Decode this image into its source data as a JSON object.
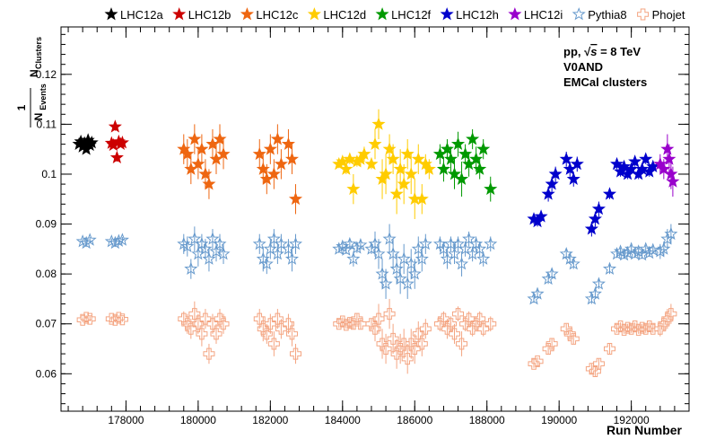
{
  "chart_data": {
    "type": "scatter",
    "title": "",
    "xlabel": "Run Number",
    "ylabel_parts": [
      "1",
      "N",
      "Events",
      "N",
      "Clusters"
    ],
    "xlim": [
      176200,
      193600
    ],
    "ylim": [
      0.0525,
      0.1295
    ],
    "x_ticks": [
      178000,
      180000,
      182000,
      184000,
      186000,
      188000,
      190000,
      192000
    ],
    "x_tick_labels": [
      "178000",
      "180000",
      "182000",
      "184000",
      "186000",
      "188000",
      "190000",
      "192000"
    ],
    "y_ticks": [
      0.06,
      0.07,
      0.08,
      0.09,
      0.1,
      0.11,
      0.12
    ],
    "y_tick_labels": [
      "0.06",
      "0.07",
      "0.08",
      "0.09",
      "0.1",
      "0.11",
      "0.12"
    ],
    "annotations": {
      "system_prefix": "pp, ",
      "sqrt": "√",
      "s": "s",
      "energy": " = 8 TeV",
      "trigger": "V0AND",
      "clusters": "EMCal clusters"
    },
    "legend_placement": "top",
    "series": [
      {
        "name": "LHC12a",
        "color": "#000000",
        "marker": "star-filled",
        "x": [
          176700,
          176750,
          176800,
          176850,
          176900,
          176950,
          177000,
          177050
        ],
        "y": [
          0.106,
          0.1065,
          0.1055,
          0.1062,
          0.105,
          0.1068,
          0.1058,
          0.1063
        ],
        "err": [
          0.0005,
          0.0005,
          0.0005,
          0.0005,
          0.0005,
          0.0005,
          0.0005,
          0.0005
        ]
      },
      {
        "name": "LHC12b",
        "color": "#cc0000",
        "marker": "star-filled",
        "x": [
          177600,
          177650,
          177700,
          177750,
          177800,
          177850,
          177900
        ],
        "y": [
          0.1062,
          0.1058,
          0.1095,
          0.1033,
          0.1065,
          0.106,
          0.1063
        ],
        "err": [
          0.0006,
          0.0006,
          0.0008,
          0.0008,
          0.0006,
          0.0006,
          0.0006
        ]
      },
      {
        "name": "LHC12c",
        "color": "#ee6611",
        "marker": "star-filled",
        "x": [
          179600,
          179700,
          179800,
          179900,
          180000,
          180100,
          180200,
          180300,
          180400,
          180500,
          180600,
          180700,
          181700,
          181800,
          181900,
          182000,
          182100,
          182200,
          182300,
          182500,
          182600,
          182700
        ],
        "y": [
          0.105,
          0.104,
          0.101,
          0.107,
          0.102,
          0.105,
          0.1,
          0.098,
          0.106,
          0.103,
          0.107,
          0.104,
          0.104,
          0.101,
          0.099,
          0.105,
          0.1,
          0.107,
          0.102,
          0.106,
          0.103,
          0.095
        ],
        "err": [
          0.003,
          0.003,
          0.003,
          0.003,
          0.003,
          0.003,
          0.003,
          0.003,
          0.003,
          0.003,
          0.003,
          0.003,
          0.003,
          0.003,
          0.003,
          0.003,
          0.003,
          0.003,
          0.003,
          0.003,
          0.003,
          0.003
        ]
      },
      {
        "name": "LHC12d",
        "color": "#ffcc00",
        "marker": "star-filled",
        "x": [
          183900,
          184000,
          184100,
          184200,
          184300,
          184400,
          184500,
          184600,
          184800,
          184900,
          185000,
          185100,
          185200,
          185300,
          185400,
          185500,
          185600,
          185700,
          185800,
          185900,
          186000,
          186100,
          186200,
          186300,
          186400
        ],
        "y": [
          0.102,
          0.1025,
          0.101,
          0.103,
          0.097,
          0.1025,
          0.103,
          0.104,
          0.102,
          0.106,
          0.11,
          0.099,
          0.1,
          0.105,
          0.103,
          0.096,
          0.101,
          0.098,
          0.104,
          0.1,
          0.095,
          0.103,
          0.095,
          0.102,
          0.101
        ],
        "err": [
          0.0008,
          0.0008,
          0.001,
          0.001,
          0.003,
          0.001,
          0.0015,
          0.0015,
          0.001,
          0.003,
          0.003,
          0.004,
          0.004,
          0.003,
          0.003,
          0.004,
          0.004,
          0.004,
          0.003,
          0.004,
          0.004,
          0.003,
          0.003,
          0.002,
          0.002
        ]
      },
      {
        "name": "LHC12f",
        "color": "#009900",
        "marker": "star-filled",
        "x": [
          186700,
          186800,
          186900,
          187000,
          187100,
          187200,
          187300,
          187400,
          187500,
          187600,
          187700,
          187800,
          187900,
          188100
        ],
        "y": [
          0.104,
          0.101,
          0.105,
          0.103,
          0.1,
          0.106,
          0.099,
          0.104,
          0.102,
          0.107,
          0.103,
          0.101,
          0.105,
          0.097
        ],
        "err": [
          0.002,
          0.0025,
          0.002,
          0.0025,
          0.003,
          0.0025,
          0.0035,
          0.002,
          0.0025,
          0.002,
          0.0025,
          0.002,
          0.002,
          0.0025
        ]
      },
      {
        "name": "LHC12h",
        "color": "#0000cc",
        "marker": "star-filled",
        "x": [
          189300,
          189400,
          189500,
          189700,
          189800,
          189900,
          190200,
          190300,
          190400,
          190500,
          190900,
          191000,
          191100,
          191400,
          191600,
          191700,
          191800,
          191900,
          192000,
          192100,
          192200,
          192300,
          192400,
          192500,
          192600
        ],
        "y": [
          0.091,
          0.0905,
          0.0915,
          0.096,
          0.098,
          0.1,
          0.103,
          0.101,
          0.099,
          0.102,
          0.089,
          0.091,
          0.093,
          0.096,
          0.102,
          0.1005,
          0.1015,
          0.1,
          0.101,
          0.1025,
          0.1,
          0.101,
          0.103,
          0.1005,
          0.1015
        ],
        "err": [
          0.001,
          0.001,
          0.001,
          0.0015,
          0.0015,
          0.0015,
          0.0015,
          0.0015,
          0.0015,
          0.0015,
          0.0015,
          0.0015,
          0.0015,
          0.001,
          0.001,
          0.001,
          0.001,
          0.001,
          0.001,
          0.001,
          0.001,
          0.001,
          0.001,
          0.001,
          0.001
        ]
      },
      {
        "name": "LHC12i",
        "color": "#9900cc",
        "marker": "star-filled",
        "x": [
          192800,
          192900,
          193000,
          193050,
          193100,
          193150
        ],
        "y": [
          0.102,
          0.101,
          0.105,
          0.103,
          0.1,
          0.0985
        ],
        "err": [
          0.002,
          0.002,
          0.003,
          0.003,
          0.003,
          0.003
        ]
      },
      {
        "name": "Pythia8",
        "color": "#6699cc",
        "marker": "star-open",
        "x": [
          176800,
          176900,
          177000,
          177600,
          177700,
          177800,
          177900,
          179600,
          179700,
          179800,
          179900,
          180000,
          180100,
          180200,
          180300,
          180400,
          180500,
          180600,
          180700,
          181700,
          181800,
          181900,
          182000,
          182100,
          182200,
          182300,
          182500,
          182600,
          182700,
          183900,
          184000,
          184100,
          184200,
          184300,
          184400,
          184500,
          184800,
          184900,
          185000,
          185100,
          185200,
          185300,
          185400,
          185500,
          185600,
          185700,
          185800,
          185900,
          186000,
          186100,
          186200,
          186300,
          186700,
          186800,
          186900,
          187000,
          187100,
          187200,
          187300,
          187400,
          187500,
          187600,
          187700,
          187800,
          187900,
          188100,
          189300,
          189400,
          189700,
          189800,
          190200,
          190300,
          190400,
          190900,
          191000,
          191100,
          191400,
          191600,
          191700,
          191800,
          191900,
          192000,
          192100,
          192200,
          192300,
          192400,
          192500,
          192600,
          192800,
          192900,
          193000,
          193100
        ],
        "y": [
          0.0865,
          0.0862,
          0.0868,
          0.0865,
          0.0862,
          0.0866,
          0.0868,
          0.086,
          0.0855,
          0.081,
          0.087,
          0.084,
          0.086,
          0.085,
          0.083,
          0.087,
          0.0845,
          0.086,
          0.084,
          0.086,
          0.083,
          0.082,
          0.085,
          0.087,
          0.084,
          0.086,
          0.085,
          0.083,
          0.086,
          0.085,
          0.0855,
          0.0848,
          0.086,
          0.083,
          0.0852,
          0.0858,
          0.085,
          0.086,
          0.084,
          0.08,
          0.078,
          0.087,
          0.084,
          0.081,
          0.079,
          0.083,
          0.078,
          0.082,
          0.08,
          0.085,
          0.083,
          0.086,
          0.086,
          0.085,
          0.083,
          0.086,
          0.084,
          0.086,
          0.082,
          0.085,
          0.087,
          0.084,
          0.086,
          0.085,
          0.083,
          0.086,
          0.075,
          0.076,
          0.079,
          0.08,
          0.084,
          0.083,
          0.082,
          0.075,
          0.076,
          0.078,
          0.081,
          0.084,
          0.0845,
          0.0838,
          0.0842,
          0.085,
          0.084,
          0.0845,
          0.0838,
          0.085,
          0.0842,
          0.0848,
          0.0845,
          0.085,
          0.087,
          0.088
        ],
        "err": [
          0.0006,
          0.0006,
          0.0006,
          0.0006,
          0.0006,
          0.0006,
          0.0006,
          0.002,
          0.002,
          0.002,
          0.0025,
          0.0025,
          0.002,
          0.002,
          0.0025,
          0.002,
          0.002,
          0.002,
          0.002,
          0.002,
          0.0025,
          0.002,
          0.002,
          0.002,
          0.002,
          0.002,
          0.002,
          0.0025,
          0.002,
          0.0008,
          0.0008,
          0.0008,
          0.001,
          0.0015,
          0.001,
          0.001,
          0.001,
          0.0025,
          0.003,
          0.003,
          0.003,
          0.003,
          0.003,
          0.003,
          0.003,
          0.003,
          0.003,
          0.003,
          0.003,
          0.0025,
          0.0025,
          0.002,
          0.0015,
          0.0015,
          0.002,
          0.0015,
          0.002,
          0.0015,
          0.0025,
          0.0015,
          0.0015,
          0.0015,
          0.0015,
          0.0015,
          0.0015,
          0.0015,
          0.0008,
          0.0008,
          0.001,
          0.001,
          0.001,
          0.001,
          0.001,
          0.001,
          0.001,
          0.001,
          0.001,
          0.0008,
          0.0008,
          0.0008,
          0.0008,
          0.0008,
          0.0008,
          0.0008,
          0.0008,
          0.0008,
          0.0008,
          0.0008,
          0.0015,
          0.0015,
          0.002,
          0.002
        ]
      },
      {
        "name": "Phojet",
        "color": "#f4a582",
        "marker": "cross-open",
        "x": [
          176800,
          176900,
          177000,
          177600,
          177700,
          177800,
          177900,
          179600,
          179700,
          179800,
          179900,
          180000,
          180100,
          180200,
          180300,
          180400,
          180500,
          180600,
          180700,
          181700,
          181800,
          181900,
          182000,
          182100,
          182200,
          182300,
          182500,
          182600,
          182700,
          183900,
          184000,
          184100,
          184200,
          184300,
          184400,
          184500,
          184800,
          184900,
          185000,
          185100,
          185200,
          185300,
          185400,
          185500,
          185600,
          185700,
          185800,
          185900,
          186000,
          186100,
          186200,
          186300,
          186700,
          186800,
          186900,
          187000,
          187100,
          187200,
          187300,
          187400,
          187500,
          187600,
          187700,
          187800,
          187900,
          188100,
          189300,
          189400,
          189700,
          189800,
          190200,
          190300,
          190400,
          190900,
          191000,
          191100,
          191400,
          191600,
          191700,
          191800,
          191900,
          192000,
          192100,
          192200,
          192300,
          192400,
          192500,
          192600,
          192800,
          192900,
          193000,
          193100
        ],
        "y": [
          0.0708,
          0.0712,
          0.071,
          0.071,
          0.0708,
          0.0712,
          0.0709,
          0.071,
          0.07,
          0.069,
          0.072,
          0.07,
          0.068,
          0.071,
          0.064,
          0.07,
          0.068,
          0.071,
          0.07,
          0.071,
          0.069,
          0.068,
          0.07,
          0.066,
          0.071,
          0.069,
          0.07,
          0.068,
          0.064,
          0.07,
          0.0705,
          0.0698,
          0.0702,
          0.07,
          0.071,
          0.07,
          0.07,
          0.069,
          0.071,
          0.066,
          0.065,
          0.072,
          0.067,
          0.064,
          0.065,
          0.066,
          0.063,
          0.066,
          0.065,
          0.068,
          0.066,
          0.069,
          0.07,
          0.071,
          0.069,
          0.07,
          0.068,
          0.072,
          0.066,
          0.07,
          0.071,
          0.069,
          0.07,
          0.071,
          0.069,
          0.07,
          0.062,
          0.0625,
          0.065,
          0.066,
          0.069,
          0.068,
          0.067,
          0.061,
          0.0605,
          0.062,
          0.065,
          0.069,
          0.0695,
          0.0688,
          0.0692,
          0.069,
          0.0695,
          0.0688,
          0.0692,
          0.069,
          0.0695,
          0.069,
          0.069,
          0.07,
          0.071,
          0.072
        ],
        "err": [
          0.0005,
          0.0005,
          0.0005,
          0.0005,
          0.0005,
          0.0005,
          0.0005,
          0.0015,
          0.002,
          0.002,
          0.0025,
          0.002,
          0.0025,
          0.002,
          0.002,
          0.002,
          0.002,
          0.002,
          0.002,
          0.002,
          0.0025,
          0.002,
          0.002,
          0.0025,
          0.002,
          0.002,
          0.002,
          0.0025,
          0.002,
          0.0008,
          0.0008,
          0.0008,
          0.001,
          0.001,
          0.001,
          0.001,
          0.001,
          0.0025,
          0.003,
          0.003,
          0.003,
          0.003,
          0.003,
          0.003,
          0.003,
          0.003,
          0.003,
          0.003,
          0.003,
          0.0025,
          0.0025,
          0.002,
          0.0015,
          0.0015,
          0.002,
          0.0015,
          0.002,
          0.0015,
          0.0025,
          0.0015,
          0.0015,
          0.0015,
          0.0015,
          0.0015,
          0.0015,
          0.0015,
          0.0008,
          0.0008,
          0.001,
          0.001,
          0.001,
          0.001,
          0.001,
          0.001,
          0.001,
          0.001,
          0.001,
          0.0008,
          0.0008,
          0.0008,
          0.0008,
          0.0008,
          0.0008,
          0.0008,
          0.0008,
          0.0008,
          0.0008,
          0.0008,
          0.0015,
          0.0015,
          0.002,
          0.002
        ]
      }
    ]
  }
}
